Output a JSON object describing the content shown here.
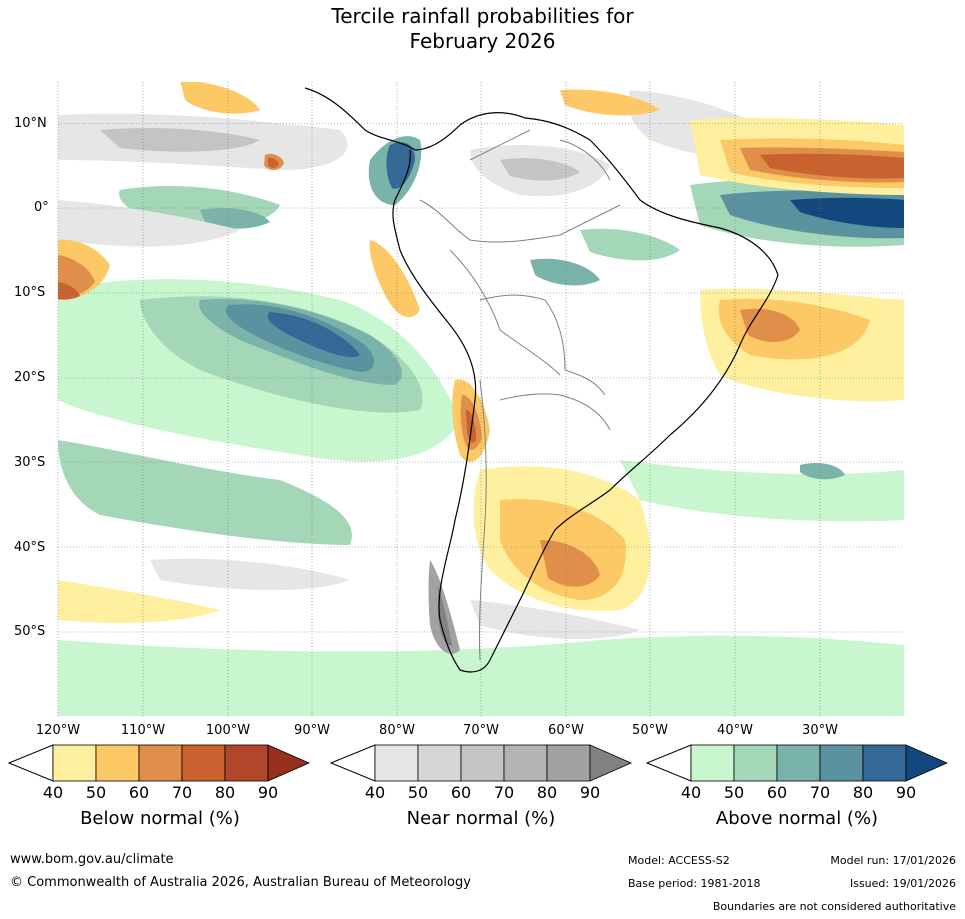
{
  "title_line1": "Tercile rainfall probabilities for",
  "title_line2": "February 2026",
  "lat_labels": [
    "10°N",
    "0°",
    "10°S",
    "20°S",
    "30°S",
    "40°S",
    "50°S"
  ],
  "lon_labels": [
    "120°W",
    "110°W",
    "100°W",
    "90°W",
    "80°W",
    "70°W",
    "60°W",
    "50°W",
    "40°W",
    "30°W"
  ],
  "colorbars": [
    {
      "title": "Below normal (%)",
      "ticks": [
        "40",
        "50",
        "60",
        "70",
        "80",
        "90"
      ],
      "colors": [
        "#fff0a0",
        "#fdc866",
        "#e08f4a",
        "#c8622f",
        "#b0462a",
        "#97301f"
      ]
    },
    {
      "title": "Near normal (%)",
      "ticks": [
        "40",
        "50",
        "60",
        "70",
        "80",
        "90"
      ],
      "colors": [
        "#e6e6e6",
        "#d6d6d6",
        "#c4c4c4",
        "#b4b4b4",
        "#a2a2a2",
        "#828282"
      ]
    },
    {
      "title": "Above normal (%)",
      "ticks": [
        "40",
        "50",
        "60",
        "70",
        "80",
        "90"
      ],
      "colors": [
        "#c8f7cf",
        "#a4d7b8",
        "#7ab3aa",
        "#5b92a0",
        "#356896",
        "#12487d"
      ]
    }
  ],
  "footer": {
    "website": "www.bom.gov.au/climate",
    "copyright": "© Commonwealth of Australia 2026, Australian Bureau of Meteorology",
    "model": "Model: ACCESS-S2",
    "model_run": "Model run: 17/01/2026",
    "base_period": "Base period: 1981-2018",
    "issued": "Issued: 19/01/2026",
    "disclaimer": "Boundaries are not considered authoritative"
  }
}
